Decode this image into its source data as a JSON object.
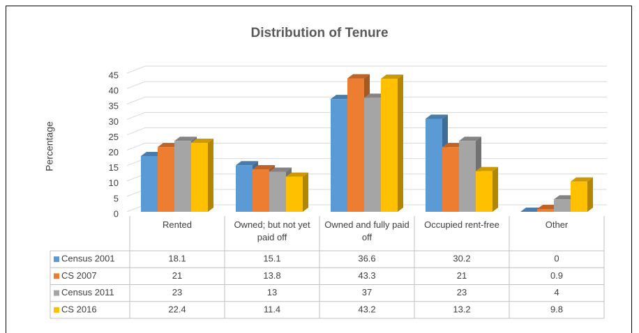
{
  "chart_data": {
    "type": "bar",
    "title": "Distribution of Tenure",
    "y_label": "Percentage",
    "categories": [
      "Rented",
      "Owned; but not yet paid off",
      "Owned and fully paid off",
      "Occupied rent-free",
      "Other"
    ],
    "series": [
      {
        "name": "Census 2001",
        "color": "#5b9bd5",
        "values": [
          18.1,
          15.1,
          36.6,
          30.2,
          0
        ]
      },
      {
        "name": "CS 2007",
        "color": "#ed7d31",
        "values": [
          21,
          13.8,
          43.3,
          21,
          0.9
        ]
      },
      {
        "name": "Census 2011",
        "color": "#a5a5a5",
        "values": [
          23,
          13,
          37,
          23,
          4
        ]
      },
      {
        "name": "CS 2016",
        "color": "#ffc000",
        "values": [
          22.4,
          11.4,
          43.2,
          13.2,
          9.8
        ]
      }
    ],
    "ylim": [
      0,
      45
    ],
    "yticks": [
      0,
      5,
      10,
      15,
      20,
      25,
      30,
      35,
      40,
      45
    ],
    "grid": true
  }
}
